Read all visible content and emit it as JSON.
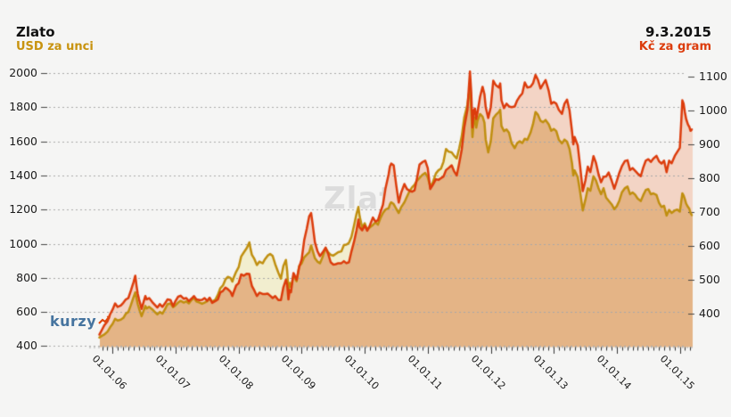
{
  "header": {
    "title": "Zlato",
    "left_series_label": "USD za unci",
    "date": "9.3.2015",
    "right_series_label": "Kč za gram"
  },
  "watermarks": {
    "center": "Zlato",
    "brand": "kurzy"
  },
  "colors": {
    "background": "#f5f5f4",
    "usd_line": "#c08f10",
    "czk_line": "#dc3c0c",
    "fill_under": "#e4b486",
    "fill_czk_above": "#f3d4c5",
    "fill_usd_above": "#f2eecf",
    "gridline": "#a8a8a8",
    "axis_tick": "#444444",
    "brand_blue": "#46749f"
  },
  "chart_data": {
    "type": "area",
    "title": "Zlato",
    "date": "9.3.2015",
    "legend_position": "top",
    "grid": true,
    "series": [
      {
        "name": "USD za unci",
        "axis": "left",
        "unit": "USD/oz",
        "color": "#c08f10"
      },
      {
        "name": "Kč za gram",
        "axis": "right",
        "unit": "CZK/g",
        "color": "#dc3c0c"
      }
    ],
    "left_axis": {
      "title": "USD za unci",
      "ticks": [
        2000,
        1800,
        1600,
        1400,
        1200,
        1000,
        800,
        600,
        400
      ],
      "range": [
        400,
        2000
      ]
    },
    "right_axis": {
      "title": "Kč za gram",
      "ticks": [
        1100,
        1000,
        900,
        800,
        700,
        600,
        500,
        400
      ],
      "range": [
        400,
        1100
      ]
    },
    "x_axis": {
      "tick_labels": [
        "01.01.06",
        "01.01.07",
        "01.01.08",
        "01.01.09",
        "01.01.10",
        "01.01.11",
        "01.01.12",
        "01.01.13",
        "01.01.14",
        "01.01.15"
      ],
      "minor_tick": "month",
      "range_decimal_years": [
        2005.79,
        2015.19
      ]
    },
    "x_unit": "decimal_year",
    "points_format": [
      "decimal_year",
      "usd_per_oz",
      "czk_per_gram"
    ],
    "points": [
      [
        2005.79,
        450,
        338
      ],
      [
        2005.83,
        460,
        352
      ],
      [
        2005.87,
        468,
        366
      ],
      [
        2005.92,
        485,
        378
      ],
      [
        2005.96,
        510,
        398
      ],
      [
        2006.0,
        530,
        412
      ],
      [
        2006.04,
        560,
        430
      ],
      [
        2006.08,
        550,
        420
      ],
      [
        2006.13,
        555,
        424
      ],
      [
        2006.17,
        565,
        432
      ],
      [
        2006.21,
        590,
        442
      ],
      [
        2006.25,
        600,
        446
      ],
      [
        2006.29,
        640,
        468
      ],
      [
        2006.33,
        685,
        492
      ],
      [
        2006.36,
        715,
        512
      ],
      [
        2006.38,
        680,
        482
      ],
      [
        2006.4,
        645,
        458
      ],
      [
        2006.42,
        620,
        442
      ],
      [
        2006.46,
        575,
        414
      ],
      [
        2006.5,
        615,
        440
      ],
      [
        2006.52,
        635,
        452
      ],
      [
        2006.54,
        620,
        442
      ],
      [
        2006.58,
        630,
        446
      ],
      [
        2006.63,
        615,
        434
      ],
      [
        2006.67,
        600,
        426
      ],
      [
        2006.71,
        585,
        418
      ],
      [
        2006.75,
        600,
        428
      ],
      [
        2006.79,
        590,
        420
      ],
      [
        2006.83,
        615,
        430
      ],
      [
        2006.87,
        645,
        442
      ],
      [
        2006.92,
        650,
        440
      ],
      [
        2006.96,
        628,
        422
      ],
      [
        2007.0,
        640,
        438
      ],
      [
        2007.04,
        655,
        450
      ],
      [
        2007.08,
        665,
        453
      ],
      [
        2007.13,
        655,
        444
      ],
      [
        2007.17,
        662,
        446
      ],
      [
        2007.21,
        650,
        437
      ],
      [
        2007.25,
        670,
        444
      ],
      [
        2007.29,
        683,
        452
      ],
      [
        2007.33,
        662,
        442
      ],
      [
        2007.38,
        655,
        440
      ],
      [
        2007.42,
        648,
        441
      ],
      [
        2007.46,
        655,
        446
      ],
      [
        2007.5,
        662,
        438
      ],
      [
        2007.54,
        678,
        447
      ],
      [
        2007.58,
        660,
        432
      ],
      [
        2007.63,
        672,
        437
      ],
      [
        2007.67,
        700,
        442
      ],
      [
        2007.71,
        740,
        463
      ],
      [
        2007.75,
        755,
        467
      ],
      [
        2007.79,
        790,
        477
      ],
      [
        2007.83,
        806,
        472
      ],
      [
        2007.87,
        800,
        465
      ],
      [
        2007.9,
        778,
        452
      ],
      [
        2007.92,
        800,
        463
      ],
      [
        2007.96,
        835,
        483
      ],
      [
        2008.0,
        862,
        490
      ],
      [
        2008.04,
        925,
        516
      ],
      [
        2008.08,
        948,
        512
      ],
      [
        2008.13,
        975,
        518
      ],
      [
        2008.17,
        1008,
        517
      ],
      [
        2008.19,
        968,
        498
      ],
      [
        2008.21,
        935,
        482
      ],
      [
        2008.25,
        910,
        468
      ],
      [
        2008.29,
        875,
        452
      ],
      [
        2008.33,
        895,
        462
      ],
      [
        2008.38,
        885,
        458
      ],
      [
        2008.42,
        910,
        458
      ],
      [
        2008.46,
        930,
        459
      ],
      [
        2008.5,
        940,
        453
      ],
      [
        2008.54,
        928,
        446
      ],
      [
        2008.58,
        880,
        452
      ],
      [
        2008.63,
        830,
        440
      ],
      [
        2008.67,
        795,
        440
      ],
      [
        2008.71,
        870,
        478
      ],
      [
        2008.75,
        905,
        500
      ],
      [
        2008.77,
        840,
        486
      ],
      [
        2008.79,
        730,
        442
      ],
      [
        2008.81,
        770,
        470
      ],
      [
        2008.83,
        745,
        463
      ],
      [
        2008.87,
        815,
        520
      ],
      [
        2008.92,
        780,
        500
      ],
      [
        2008.96,
        870,
        537
      ],
      [
        2009.0,
        885,
        560
      ],
      [
        2009.04,
        920,
        617
      ],
      [
        2009.08,
        935,
        650
      ],
      [
        2009.12,
        950,
        688
      ],
      [
        2009.15,
        990,
        697
      ],
      [
        2009.17,
        965,
        670
      ],
      [
        2009.21,
        915,
        611
      ],
      [
        2009.25,
        895,
        585
      ],
      [
        2009.29,
        885,
        570
      ],
      [
        2009.33,
        920,
        580
      ],
      [
        2009.38,
        975,
        595
      ],
      [
        2009.42,
        950,
        577
      ],
      [
        2009.46,
        935,
        552
      ],
      [
        2009.5,
        930,
        545
      ],
      [
        2009.54,
        940,
        546
      ],
      [
        2009.58,
        950,
        549
      ],
      [
        2009.63,
        955,
        549
      ],
      [
        2009.67,
        992,
        555
      ],
      [
        2009.71,
        995,
        549
      ],
      [
        2009.75,
        1005,
        552
      ],
      [
        2009.79,
        1040,
        584
      ],
      [
        2009.83,
        1105,
        612
      ],
      [
        2009.87,
        1175,
        646
      ],
      [
        2009.9,
        1215,
        678
      ],
      [
        2009.92,
        1160,
        655
      ],
      [
        2009.96,
        1095,
        646
      ],
      [
        2010.0,
        1120,
        660
      ],
      [
        2010.04,
        1082,
        645
      ],
      [
        2010.08,
        1095,
        660
      ],
      [
        2010.13,
        1110,
        684
      ],
      [
        2010.17,
        1125,
        672
      ],
      [
        2010.21,
        1112,
        676
      ],
      [
        2010.25,
        1150,
        700
      ],
      [
        2010.29,
        1180,
        722
      ],
      [
        2010.33,
        1200,
        770
      ],
      [
        2010.38,
        1208,
        812
      ],
      [
        2010.4,
        1230,
        835
      ],
      [
        2010.42,
        1243,
        843
      ],
      [
        2010.46,
        1232,
        838
      ],
      [
        2010.5,
        1205,
        780
      ],
      [
        2010.54,
        1180,
        728
      ],
      [
        2010.58,
        1215,
        758
      ],
      [
        2010.63,
        1243,
        783
      ],
      [
        2010.67,
        1275,
        768
      ],
      [
        2010.71,
        1307,
        763
      ],
      [
        2010.75,
        1330,
        760
      ],
      [
        2010.79,
        1345,
        764
      ],
      [
        2010.83,
        1370,
        800
      ],
      [
        2010.87,
        1385,
        840
      ],
      [
        2010.92,
        1405,
        848
      ],
      [
        2010.96,
        1415,
        852
      ],
      [
        2011.0,
        1390,
        830
      ],
      [
        2011.04,
        1335,
        768
      ],
      [
        2011.08,
        1360,
        780
      ],
      [
        2011.13,
        1412,
        797
      ],
      [
        2011.17,
        1430,
        795
      ],
      [
        2011.21,
        1440,
        800
      ],
      [
        2011.25,
        1480,
        805
      ],
      [
        2011.29,
        1555,
        824
      ],
      [
        2011.33,
        1540,
        830
      ],
      [
        2011.38,
        1535,
        838
      ],
      [
        2011.42,
        1515,
        820
      ],
      [
        2011.46,
        1500,
        808
      ],
      [
        2011.5,
        1560,
        845
      ],
      [
        2011.54,
        1630,
        885
      ],
      [
        2011.58,
        1740,
        950
      ],
      [
        2011.63,
        1815,
        1002
      ],
      [
        2011.65,
        1875,
        1060
      ],
      [
        2011.67,
        1900,
        1115
      ],
      [
        2011.69,
        1790,
        1055
      ],
      [
        2011.71,
        1625,
        950
      ],
      [
        2011.73,
        1715,
        1000
      ],
      [
        2011.75,
        1740,
        1006
      ],
      [
        2011.77,
        1680,
        975
      ],
      [
        2011.79,
        1722,
        994
      ],
      [
        2011.83,
        1760,
        1040
      ],
      [
        2011.87,
        1745,
        1070
      ],
      [
        2011.9,
        1710,
        1048
      ],
      [
        2011.92,
        1610,
        1010
      ],
      [
        2011.96,
        1535,
        978
      ],
      [
        2012.0,
        1600,
        1010
      ],
      [
        2012.04,
        1735,
        1088
      ],
      [
        2012.08,
        1755,
        1075
      ],
      [
        2012.13,
        1772,
        1068
      ],
      [
        2012.15,
        1785,
        1080
      ],
      [
        2012.17,
        1690,
        1030
      ],
      [
        2012.21,
        1660,
        1007
      ],
      [
        2012.25,
        1670,
        1020
      ],
      [
        2012.29,
        1650,
        1012
      ],
      [
        2012.33,
        1590,
        1010
      ],
      [
        2012.38,
        1560,
        1012
      ],
      [
        2012.42,
        1590,
        1030
      ],
      [
        2012.46,
        1600,
        1042
      ],
      [
        2012.5,
        1590,
        1050
      ],
      [
        2012.54,
        1615,
        1083
      ],
      [
        2012.58,
        1608,
        1068
      ],
      [
        2012.63,
        1650,
        1070
      ],
      [
        2012.67,
        1700,
        1080
      ],
      [
        2012.71,
        1772,
        1105
      ],
      [
        2012.75,
        1755,
        1090
      ],
      [
        2012.79,
        1720,
        1065
      ],
      [
        2012.83,
        1712,
        1078
      ],
      [
        2012.87,
        1725,
        1090
      ],
      [
        2012.92,
        1700,
        1058
      ],
      [
        2012.96,
        1662,
        1020
      ],
      [
        2013.0,
        1672,
        1025
      ],
      [
        2013.04,
        1660,
        1020
      ],
      [
        2013.08,
        1610,
        1002
      ],
      [
        2013.13,
        1588,
        990
      ],
      [
        2013.17,
        1610,
        1020
      ],
      [
        2013.21,
        1598,
        1032
      ],
      [
        2013.25,
        1555,
        1000
      ],
      [
        2013.29,
        1470,
        938
      ],
      [
        2013.31,
        1400,
        900
      ],
      [
        2013.33,
        1430,
        922
      ],
      [
        2013.38,
        1390,
        897
      ],
      [
        2013.42,
        1300,
        832
      ],
      [
        2013.46,
        1195,
        762
      ],
      [
        2013.5,
        1255,
        792
      ],
      [
        2013.54,
        1325,
        834
      ],
      [
        2013.58,
        1310,
        818
      ],
      [
        2013.63,
        1395,
        865
      ],
      [
        2013.67,
        1370,
        845
      ],
      [
        2013.71,
        1325,
        812
      ],
      [
        2013.75,
        1290,
        788
      ],
      [
        2013.79,
        1325,
        804
      ],
      [
        2013.83,
        1270,
        805
      ],
      [
        2013.87,
        1252,
        817
      ],
      [
        2013.92,
        1230,
        792
      ],
      [
        2013.96,
        1202,
        769
      ],
      [
        2014.0,
        1220,
        792
      ],
      [
        2014.04,
        1252,
        816
      ],
      [
        2014.08,
        1300,
        835
      ],
      [
        2014.13,
        1326,
        851
      ],
      [
        2014.17,
        1335,
        853
      ],
      [
        2014.21,
        1290,
        824
      ],
      [
        2014.25,
        1300,
        830
      ],
      [
        2014.29,
        1288,
        822
      ],
      [
        2014.33,
        1265,
        814
      ],
      [
        2014.38,
        1250,
        806
      ],
      [
        2014.42,
        1285,
        832
      ],
      [
        2014.46,
        1315,
        852
      ],
      [
        2014.5,
        1320,
        856
      ],
      [
        2014.54,
        1290,
        848
      ],
      [
        2014.58,
        1295,
        858
      ],
      [
        2014.63,
        1285,
        866
      ],
      [
        2014.67,
        1240,
        850
      ],
      [
        2014.71,
        1215,
        843
      ],
      [
        2014.75,
        1222,
        852
      ],
      [
        2014.79,
        1165,
        818
      ],
      [
        2014.83,
        1198,
        852
      ],
      [
        2014.87,
        1180,
        844
      ],
      [
        2014.92,
        1195,
        866
      ],
      [
        2014.96,
        1200,
        878
      ],
      [
        2015.0,
        1188,
        890
      ],
      [
        2015.02,
        1240,
        958
      ],
      [
        2015.04,
        1295,
        1030
      ],
      [
        2015.06,
        1283,
        1020
      ],
      [
        2015.08,
        1260,
        995
      ],
      [
        2015.1,
        1235,
        975
      ],
      [
        2015.13,
        1215,
        958
      ],
      [
        2015.15,
        1205,
        952
      ],
      [
        2015.17,
        1180,
        940
      ],
      [
        2015.19,
        1168,
        944
      ]
    ]
  }
}
